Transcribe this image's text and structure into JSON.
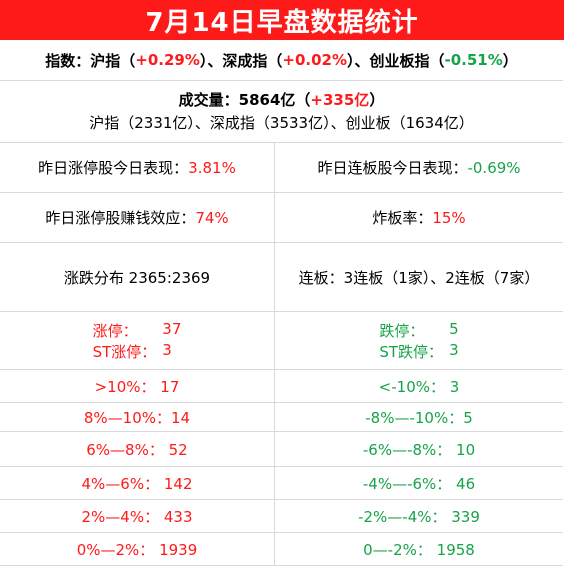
{
  "title": "7月14日早盘数据统计",
  "indices": {
    "label": "指数：",
    "sh_name": "沪指（",
    "sh_val": "+0.29%",
    "sep1": "）、深成指（",
    "sz_val": "+0.02%",
    "sep2": "）、创业板指（",
    "cy_val": "-0.51%",
    "end": "）"
  },
  "volume": {
    "label": "成交量：5864亿（",
    "change": "+335亿",
    "end": "）",
    "detail": "沪指（2331亿）、深成指（3533亿）、创业板（1634亿）"
  },
  "perf": {
    "left_label": "昨日涨停股今日表现：",
    "left_val": "3.81%",
    "right_label": "昨日连板股今日表现：",
    "right_val": "-0.69%"
  },
  "effect": {
    "left_label": "昨日涨停股赚钱效应：",
    "left_val": "74%",
    "right_label": "炸板率：",
    "right_val": "15%"
  },
  "distribution": {
    "left": "涨跌分布 2365:2369",
    "right": "连板：3连板（1家）、2连板（7家）"
  },
  "limits": {
    "up_label": "涨停：",
    "up_val": "37",
    "st_up_label": "ST涨停：",
    "st_up_val": "3",
    "down_label": "跌停：",
    "down_val": "5",
    "st_down_label": "ST跌停：",
    "st_down_val": "3"
  },
  "ranges": [
    {
      "up": ">10%：  17",
      "down": "<-10%：  3"
    },
    {
      "up": "8%—10%：14",
      "down": "-8%—-10%：5"
    },
    {
      "up": "6%—8%：  52",
      "down": "-6%—-8%：  10"
    },
    {
      "up": "4%—6%：  142",
      "down": "-4%—-6%：  46"
    },
    {
      "up": "2%—4%：  433",
      "down": "-2%—-4%：  339"
    },
    {
      "up": "0%—2%：  1939",
      "down": "0—-2%：  1958"
    }
  ],
  "colors": {
    "header_bg": "#ff1a1a",
    "up": "#ff1a1a",
    "down": "#16a34a",
    "border": "#d9d9d9"
  }
}
